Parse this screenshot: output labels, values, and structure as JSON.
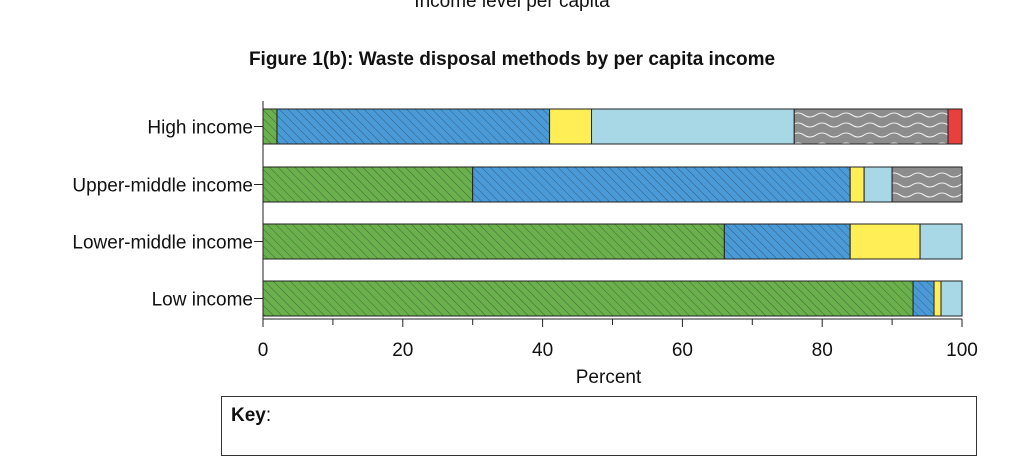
{
  "header": {
    "cut_title": "Income level per capita",
    "figure_title": "Figure 1(b): Waste disposal methods by per capita income"
  },
  "key": {
    "title_bold": "Key",
    "title_rest": ":"
  },
  "colors": {
    "green": "#6ab04c",
    "blue": "#4a9ad8",
    "yellow": "#ffee55",
    "lightblue": "#a8d8e6",
    "grey": "#8c8c8c",
    "red": "#e8403c"
  },
  "chart_data": {
    "type": "bar",
    "orientation": "horizontal",
    "stacked": true,
    "title": "Figure 1(b): Waste disposal methods by per capita income",
    "xlabel": "Percent",
    "ylabel": "",
    "xlim": [
      0,
      100
    ],
    "xticks": [
      0,
      20,
      40,
      60,
      80,
      100
    ],
    "categories": [
      "High income",
      "Upper-middle income",
      "Lower-middle income",
      "Low income"
    ],
    "series": [
      {
        "color": "#6ab04c",
        "pattern": "hatch",
        "values": [
          2,
          30,
          66,
          93
        ]
      },
      {
        "color": "#4a9ad8",
        "pattern": "hatch",
        "values": [
          39,
          54,
          18,
          3
        ]
      },
      {
        "color": "#ffee55",
        "pattern": "solid",
        "values": [
          6,
          2,
          10,
          1
        ]
      },
      {
        "color": "#a8d8e6",
        "pattern": "solid",
        "values": [
          29,
          4,
          6,
          3
        ]
      },
      {
        "color": "#8c8c8c",
        "pattern": "wave",
        "values": [
          22,
          10,
          0,
          0
        ]
      },
      {
        "color": "#e8403c",
        "pattern": "solid",
        "values": [
          2,
          0,
          0,
          0
        ]
      }
    ]
  }
}
